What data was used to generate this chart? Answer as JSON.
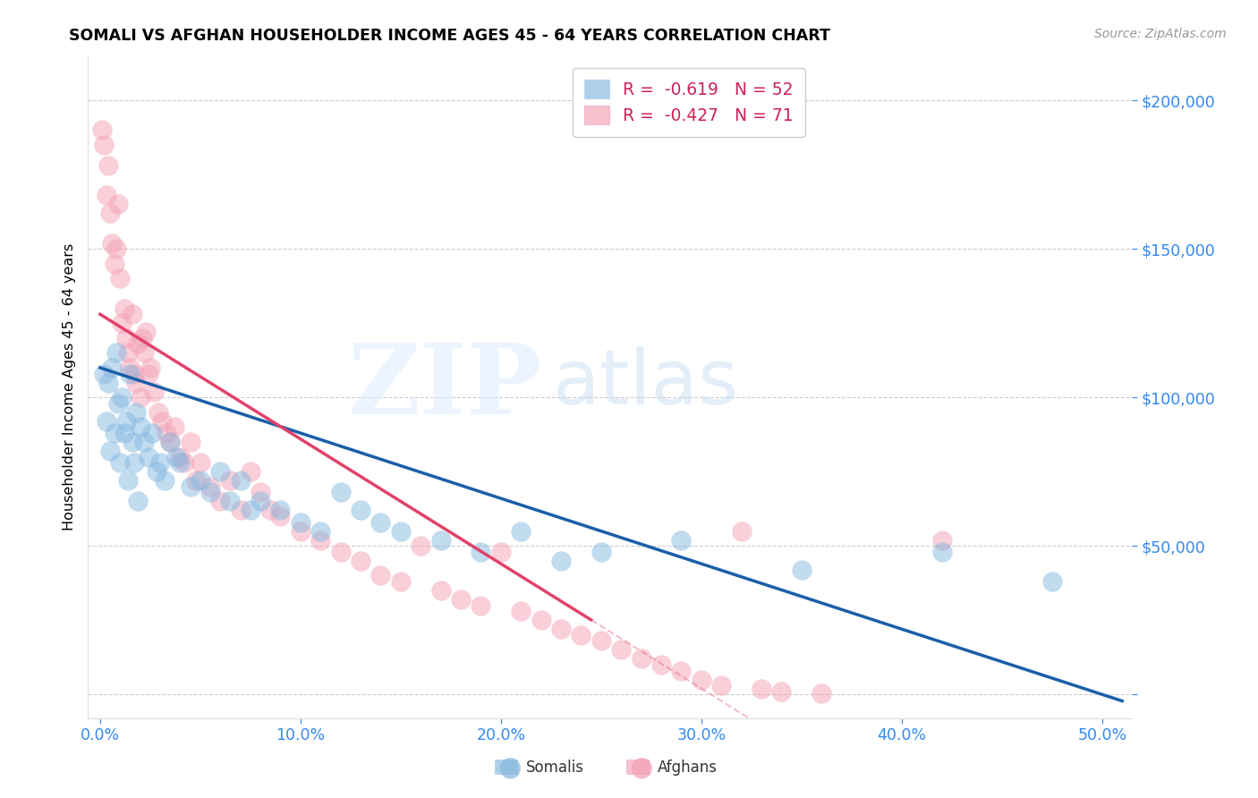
{
  "title": "SOMALI VS AFGHAN HOUSEHOLDER INCOME AGES 45 - 64 YEARS CORRELATION CHART",
  "source": "Source: ZipAtlas.com",
  "ylabel": "Householder Income Ages 45 - 64 years",
  "ytick_vals": [
    0,
    50000,
    100000,
    150000,
    200000
  ],
  "ytick_labels": [
    "",
    "$50,000",
    "$100,000",
    "$150,000",
    "$200,000"
  ],
  "xtick_vals": [
    0.0,
    0.1,
    0.2,
    0.3,
    0.4,
    0.5
  ],
  "xtick_labels": [
    "0.0%",
    "10.0%",
    "20.0%",
    "30.0%",
    "40.0%",
    "50.0%"
  ],
  "xlim": [
    -0.006,
    0.515
  ],
  "ylim": [
    -8000,
    215000
  ],
  "somali_color": "#85b8e0",
  "afghan_color": "#f4a0b5",
  "somali_line_color": "#1a5fa8",
  "afghan_line_color": "#e0436a",
  "somali_N": 52,
  "afghan_N": 71,
  "somali_R": -0.619,
  "afghan_R": -0.427,
  "somali_x": [
    0.002,
    0.003,
    0.004,
    0.005,
    0.006,
    0.007,
    0.008,
    0.009,
    0.01,
    0.011,
    0.012,
    0.013,
    0.014,
    0.015,
    0.016,
    0.017,
    0.018,
    0.019,
    0.02,
    0.022,
    0.024,
    0.026,
    0.028,
    0.03,
    0.032,
    0.035,
    0.038,
    0.04,
    0.045,
    0.05,
    0.055,
    0.06,
    0.065,
    0.07,
    0.075,
    0.08,
    0.09,
    0.1,
    0.11,
    0.12,
    0.13,
    0.14,
    0.15,
    0.17,
    0.19,
    0.21,
    0.23,
    0.25,
    0.29,
    0.35,
    0.42,
    0.475
  ],
  "somali_y": [
    108000,
    92000,
    105000,
    82000,
    110000,
    88000,
    115000,
    98000,
    78000,
    100000,
    88000,
    92000,
    72000,
    108000,
    85000,
    78000,
    95000,
    65000,
    90000,
    85000,
    80000,
    88000,
    75000,
    78000,
    72000,
    85000,
    80000,
    78000,
    70000,
    72000,
    68000,
    75000,
    65000,
    72000,
    62000,
    65000,
    62000,
    58000,
    55000,
    68000,
    62000,
    58000,
    55000,
    52000,
    48000,
    55000,
    45000,
    48000,
    52000,
    42000,
    48000,
    38000
  ],
  "afghan_x": [
    0.001,
    0.002,
    0.003,
    0.004,
    0.005,
    0.006,
    0.007,
    0.008,
    0.009,
    0.01,
    0.011,
    0.012,
    0.013,
    0.014,
    0.015,
    0.016,
    0.017,
    0.018,
    0.019,
    0.02,
    0.021,
    0.022,
    0.023,
    0.024,
    0.025,
    0.027,
    0.029,
    0.031,
    0.033,
    0.035,
    0.037,
    0.04,
    0.042,
    0.045,
    0.048,
    0.05,
    0.055,
    0.06,
    0.065,
    0.07,
    0.075,
    0.08,
    0.085,
    0.09,
    0.1,
    0.11,
    0.12,
    0.13,
    0.14,
    0.15,
    0.16,
    0.17,
    0.18,
    0.19,
    0.2,
    0.21,
    0.22,
    0.23,
    0.24,
    0.25,
    0.26,
    0.27,
    0.28,
    0.29,
    0.3,
    0.31,
    0.32,
    0.33,
    0.34,
    0.36,
    0.42
  ],
  "afghan_y": [
    190000,
    185000,
    168000,
    178000,
    162000,
    152000,
    145000,
    150000,
    165000,
    140000,
    125000,
    130000,
    120000,
    115000,
    110000,
    128000,
    108000,
    105000,
    118000,
    100000,
    120000,
    115000,
    122000,
    108000,
    110000,
    102000,
    95000,
    92000,
    88000,
    85000,
    90000,
    80000,
    78000,
    85000,
    72000,
    78000,
    70000,
    65000,
    72000,
    62000,
    75000,
    68000,
    62000,
    60000,
    55000,
    52000,
    48000,
    45000,
    40000,
    38000,
    50000,
    35000,
    32000,
    30000,
    48000,
    28000,
    25000,
    22000,
    20000,
    18000,
    15000,
    12000,
    10000,
    8000,
    5000,
    3000,
    55000,
    2000,
    1000,
    500,
    52000
  ]
}
